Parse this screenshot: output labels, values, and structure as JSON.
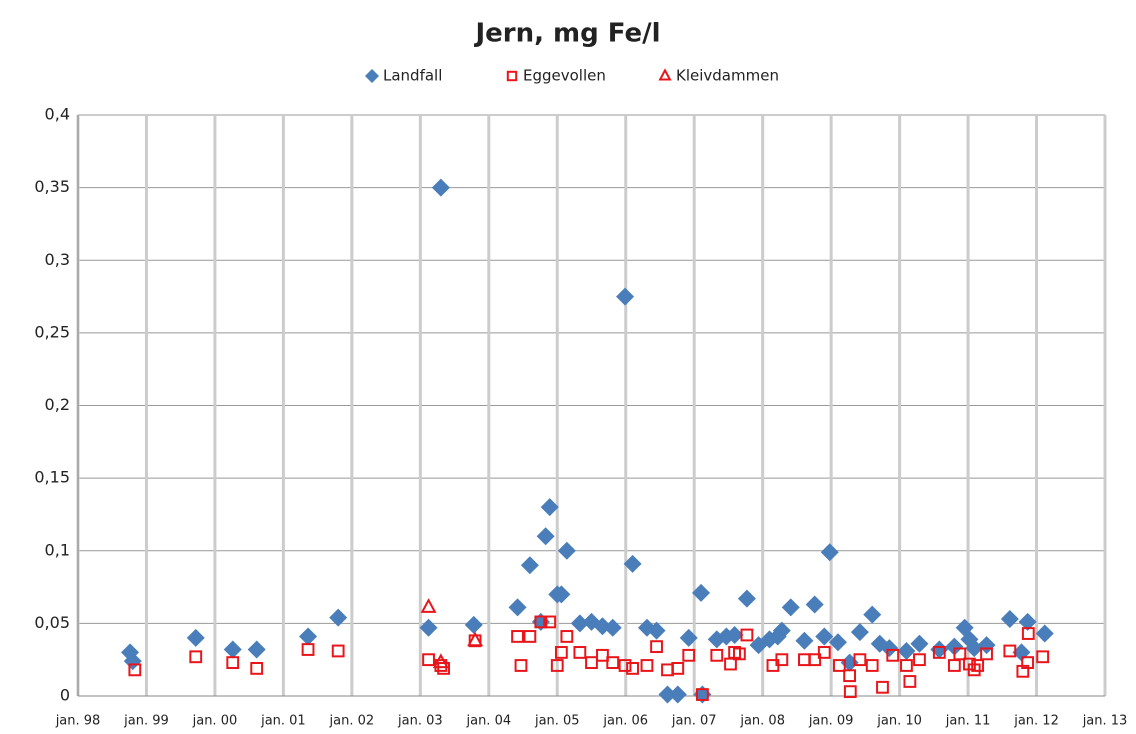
{
  "chart_data": {
    "type": "scatter",
    "title": "Jern, mg Fe/l",
    "legend": "top",
    "grid": true,
    "xlim": [
      1998,
      2013
    ],
    "xticks": [
      {
        "value": 1998,
        "label": "jan. 98"
      },
      {
        "value": 1999,
        "label": "jan. 99"
      },
      {
        "value": 2000,
        "label": "jan. 00"
      },
      {
        "value": 2001,
        "label": "jan. 01"
      },
      {
        "value": 2002,
        "label": "jan. 02"
      },
      {
        "value": 2003,
        "label": "jan. 03"
      },
      {
        "value": 2004,
        "label": "jan. 04"
      },
      {
        "value": 2005,
        "label": "jan. 05"
      },
      {
        "value": 2006,
        "label": "jan. 06"
      },
      {
        "value": 2007,
        "label": "jan. 07"
      },
      {
        "value": 2008,
        "label": "jan. 08"
      },
      {
        "value": 2009,
        "label": "jan. 09"
      },
      {
        "value": 2010,
        "label": "jan. 10"
      },
      {
        "value": 2011,
        "label": "jan. 11"
      },
      {
        "value": 2012,
        "label": "jan. 12"
      },
      {
        "value": 2013,
        "label": "jan. 13"
      }
    ],
    "ylim": [
      0,
      0.4
    ],
    "yticks": [
      0,
      {
        "value": 0.05,
        "label": "0,05"
      },
      {
        "value": 0.1,
        "label": "0,1"
      },
      {
        "value": 0.15,
        "label": "0,15"
      },
      {
        "value": 0.2,
        "label": "0,2"
      },
      {
        "value": 0.25,
        "label": "0,25"
      },
      {
        "value": 0.3,
        "label": "0,3"
      },
      {
        "value": 0.35,
        "label": "0,35"
      },
      {
        "value": 0.4,
        "label": "0,4"
      }
    ],
    "series": [
      {
        "name": "Landfall",
        "color": "#4a7ebb",
        "marker": "diamond",
        "x": [
          1998.76,
          1998.8,
          1999.72,
          2000.26,
          2000.61,
          2001.36,
          2001.8,
          2003.12,
          2003.3,
          2003.78,
          2004.42,
          2004.6,
          2004.76,
          2004.83,
          2004.89,
          2005.0,
          2005.06,
          2005.14,
          2005.33,
          2005.5,
          2005.66,
          2005.81,
          2005.99,
          2006.1,
          2006.31,
          2006.45,
          2006.61,
          2006.76,
          2006.92,
          2007.1,
          2007.12,
          2007.33,
          2007.47,
          2007.59,
          2007.77,
          2007.94,
          2008.1,
          2008.22,
          2008.28,
          2008.41,
          2008.61,
          2008.76,
          2008.9,
          2008.98,
          2009.1,
          2009.27,
          2009.42,
          2009.6,
          2009.71,
          2009.85,
          2010.1,
          2010.29,
          2010.58,
          2010.8,
          2010.95,
          2011.02,
          2011.09,
          2011.27,
          2011.61,
          2011.78,
          2011.87,
          2012.12
        ],
        "values": [
          0.03,
          0.024,
          0.04,
          0.032,
          0.032,
          0.041,
          0.054,
          0.047,
          0.35,
          0.049,
          0.061,
          0.09,
          0.051,
          0.11,
          0.13,
          0.07,
          0.07,
          0.1,
          0.05,
          0.051,
          0.048,
          0.047,
          0.275,
          0.091,
          0.047,
          0.045,
          0.001,
          0.001,
          0.04,
          0.071,
          0.001,
          0.039,
          0.041,
          0.042,
          0.067,
          0.035,
          0.039,
          0.041,
          0.045,
          0.061,
          0.038,
          0.063,
          0.041,
          0.099,
          0.037,
          0.023,
          0.044,
          0.056,
          0.036,
          0.033,
          0.031,
          0.036,
          0.032,
          0.034,
          0.047,
          0.039,
          0.033,
          0.035,
          0.053,
          0.03,
          0.051,
          0.043
        ]
      },
      {
        "name": "Eggevollen",
        "color": "#e8161b",
        "marker": "square",
        "x": [
          1998.83,
          1999.72,
          2000.26,
          2000.61,
          2001.36,
          2001.8,
          2003.12,
          2003.3,
          2003.34,
          2003.8,
          2004.42,
          2004.47,
          2004.6,
          2004.76,
          2004.89,
          2005.0,
          2005.06,
          2005.14,
          2005.33,
          2005.5,
          2005.66,
          2005.81,
          2005.99,
          2006.1,
          2006.31,
          2006.45,
          2006.61,
          2006.76,
          2006.92,
          2007.12,
          2007.33,
          2007.53,
          2007.59,
          2007.66,
          2007.77,
          2008.15,
          2008.28,
          2008.61,
          2008.76,
          2008.9,
          2009.12,
          2009.27,
          2009.28,
          2009.42,
          2009.6,
          2009.75,
          2009.9,
          2010.1,
          2010.15,
          2010.29,
          2010.58,
          2010.8,
          2010.88,
          2011.02,
          2011.09,
          2011.14,
          2011.27,
          2011.61,
          2011.8,
          2011.87,
          2011.88,
          2012.09
        ],
        "values": [
          0.018,
          0.027,
          0.023,
          0.019,
          0.032,
          0.031,
          0.025,
          0.021,
          0.019,
          0.038,
          0.041,
          0.021,
          0.041,
          0.051,
          0.051,
          0.021,
          0.03,
          0.041,
          0.03,
          0.023,
          0.028,
          0.023,
          0.021,
          0.019,
          0.021,
          0.034,
          0.018,
          0.019,
          0.028,
          0.001,
          0.028,
          0.022,
          0.03,
          0.029,
          0.042,
          0.021,
          0.025,
          0.025,
          0.025,
          0.03,
          0.021,
          0.014,
          0.003,
          0.025,
          0.021,
          0.006,
          0.028,
          0.021,
          0.01,
          0.025,
          0.03,
          0.021,
          0.029,
          0.022,
          0.018,
          0.021,
          0.029,
          0.031,
          0.017,
          0.023,
          0.043,
          0.027
        ]
      },
      {
        "name": "Kleivdammen",
        "color": "#e8161b",
        "marker": "triangle",
        "x": [
          2003.12,
          2003.3,
          2003.8
        ],
        "values": [
          0.061,
          0.023,
          0.038
        ]
      }
    ]
  }
}
